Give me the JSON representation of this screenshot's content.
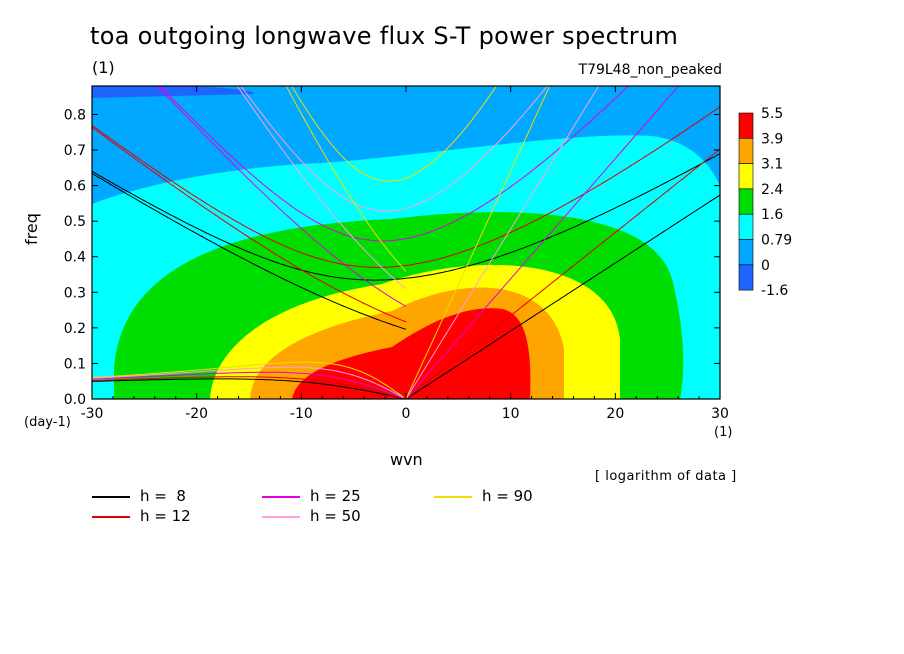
{
  "chart_data": {
    "type": "heatmap",
    "title": "toa outgoing longwave flux S-T power spectrum",
    "subtitle_left": "(1)",
    "subtitle_right": "T79L48_non_peaked",
    "xlabel": "wvn",
    "ylabel": "freq",
    "x_unit": "(1)",
    "y_unit": "(day-1)",
    "xlim": [
      -30,
      30
    ],
    "ylim": [
      0,
      0.88
    ],
    "x_ticks": [
      -30,
      -20,
      -10,
      0,
      10,
      20,
      30
    ],
    "y_ticks": [
      0.0,
      0.1,
      0.2,
      0.3,
      0.4,
      0.5,
      0.6,
      0.7,
      0.8
    ],
    "note": "[ logarithm of data ]",
    "colorbar": {
      "levels": [
        "5.5",
        "3.9",
        "3.1",
        "2.4",
        "1.6",
        "0.79",
        "0",
        "-1.6"
      ],
      "colors": [
        "#ff0000",
        "#ffa500",
        "#ffff00",
        "#00dd00",
        "#00ffff",
        "#00a8ff",
        "#1e64ff"
      ]
    },
    "dispersion_curves": [
      {
        "name": "h =  8",
        "h": 8,
        "color": "#000000"
      },
      {
        "name": "h = 12",
        "h": 12,
        "color": "#e00000"
      },
      {
        "name": "h = 25",
        "h": 25,
        "color": "#e000e0"
      },
      {
        "name": "h = 50",
        "h": 50,
        "color": "#ff9ee0"
      },
      {
        "name": "h = 90",
        "h": 90,
        "color": "#eedd00"
      }
    ]
  }
}
